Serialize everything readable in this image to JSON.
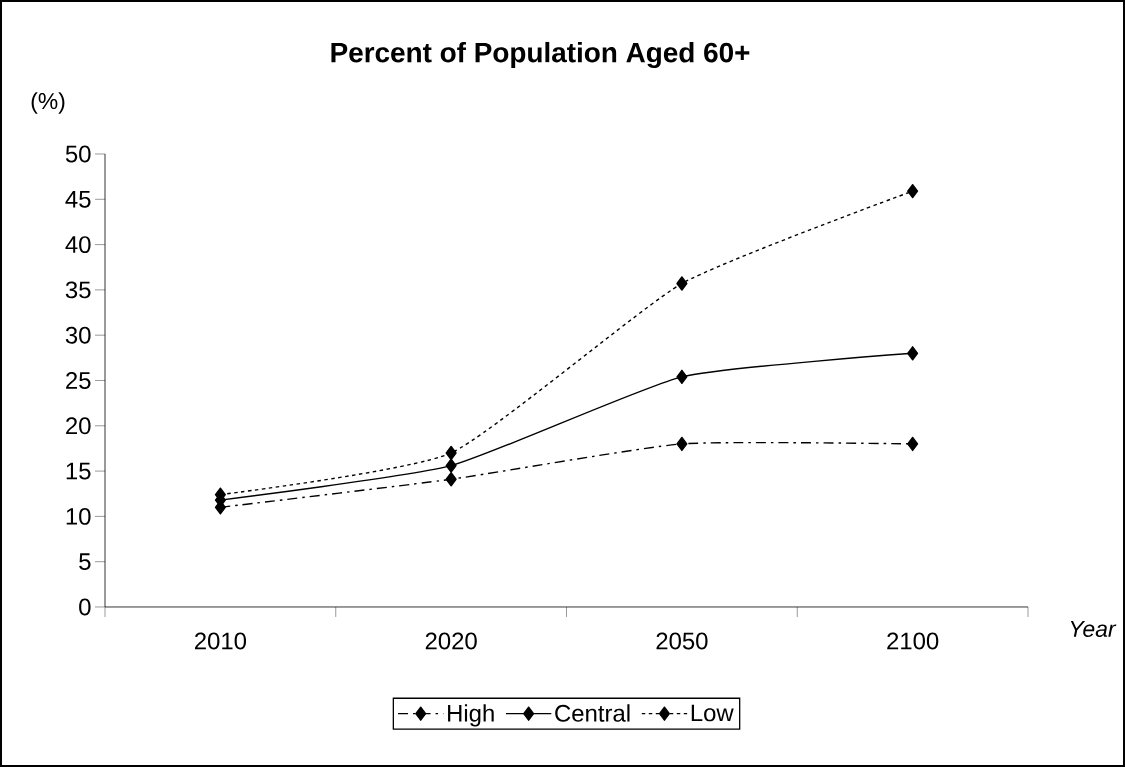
{
  "chart_data": {
    "type": "line",
    "title": "Percent of Population Aged 60+",
    "ylabel": "(%)",
    "xlabel": "Year",
    "categories": [
      "2010",
      "2020",
      "2050",
      "2100"
    ],
    "series": [
      {
        "name": "High",
        "color": "#000000",
        "line_style": "dashed",
        "values": [
          11.0,
          14.1,
          18.0,
          18.0
        ]
      },
      {
        "name": "Central",
        "color": "#000000",
        "line_style": "solid",
        "values": [
          11.8,
          15.6,
          25.4,
          28.0
        ]
      },
      {
        "name": "Low",
        "color": "#000000",
        "line_style": "dotted",
        "values": [
          12.4,
          17.0,
          35.7,
          45.9
        ]
      }
    ],
    "ylim": [
      0,
      50
    ],
    "yticks": [
      0,
      5,
      10,
      15,
      20,
      25,
      30,
      35,
      40,
      45,
      50
    ],
    "marker": "diamond",
    "legend": "bottom",
    "grid": false
  }
}
